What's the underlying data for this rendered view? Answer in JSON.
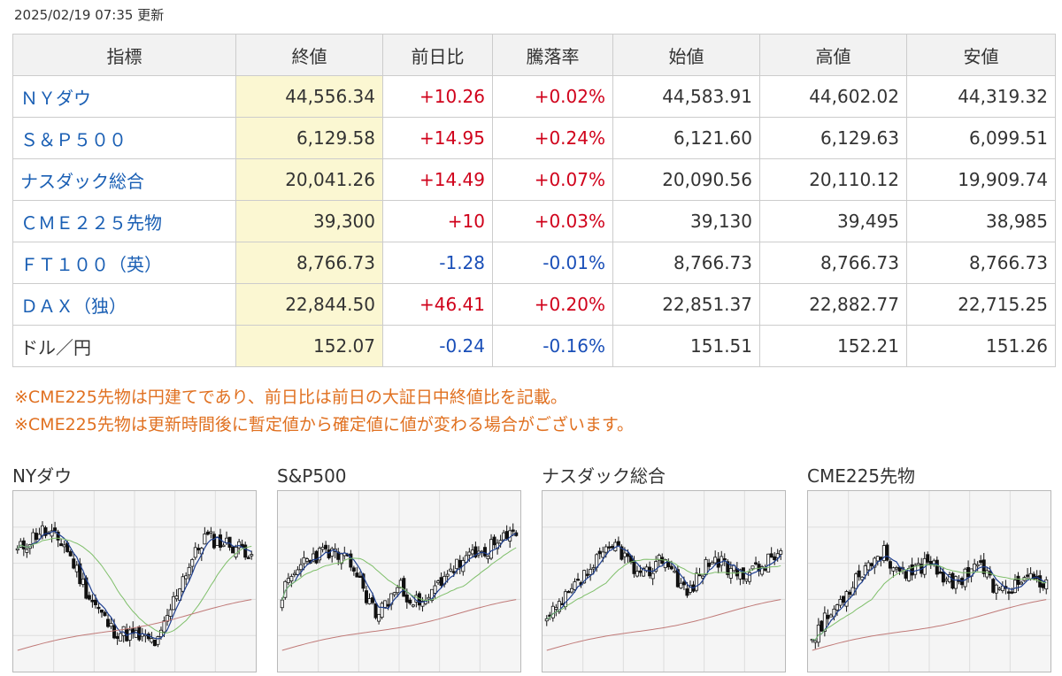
{
  "updated_text": "2025/02/19 07:35 更新",
  "table": {
    "headers": [
      "指標",
      "終値",
      "前日比",
      "騰落率",
      "始値",
      "高値",
      "安値"
    ],
    "rows": [
      {
        "name": "ＮＹダウ",
        "link": true,
        "close": "44,556.34",
        "change": "+10.26",
        "pct": "+0.02%",
        "dir": "up",
        "open": "44,583.91",
        "high": "44,602.02",
        "low": "44,319.32"
      },
      {
        "name": "Ｓ＆Ｐ５００",
        "link": true,
        "close": "6,129.58",
        "change": "+14.95",
        "pct": "+0.24%",
        "dir": "up",
        "open": "6,121.60",
        "high": "6,129.63",
        "low": "6,099.51"
      },
      {
        "name": "ナスダック総合",
        "link": true,
        "close": "20,041.26",
        "change": "+14.49",
        "pct": "+0.07%",
        "dir": "up",
        "open": "20,090.56",
        "high": "20,110.12",
        "low": "19,909.74"
      },
      {
        "name": "ＣＭＥ２２５先物",
        "link": true,
        "close": "39,300",
        "change": "+10",
        "pct": "+0.03%",
        "dir": "up",
        "open": "39,130",
        "high": "39,495",
        "low": "38,985"
      },
      {
        "name": "ＦＴ１００（英）",
        "link": true,
        "close": "8,766.73",
        "change": "-1.28",
        "pct": "-0.01%",
        "dir": "down",
        "open": "8,766.73",
        "high": "8,766.73",
        "low": "8,766.73"
      },
      {
        "name": "ＤＡＸ（独）",
        "link": true,
        "close": "22,844.50",
        "change": "+46.41",
        "pct": "+0.20%",
        "dir": "up",
        "open": "22,851.37",
        "high": "22,882.77",
        "low": "22,715.25"
      },
      {
        "name": "ドル／円",
        "link": false,
        "close": "152.07",
        "change": "-0.24",
        "pct": "-0.16%",
        "dir": "down",
        "open": "151.51",
        "high": "152.21",
        "low": "151.26"
      }
    ]
  },
  "notes": [
    "※CME225先物は円建てであり、前日比は前日の大証日中終値比を記載。",
    "※CME225先物は更新時間後に暫定値から確定値に値が変わる場合がございます。"
  ],
  "colors": {
    "up": "#d0021b",
    "down": "#1a4fb8",
    "link": "#1a5fb4",
    "note": "#e07020",
    "close_bg": "#fbf7d2",
    "ma_short": "#1f3f8f",
    "ma_mid": "#7fbf6a",
    "ma_long": "#c07a78"
  },
  "charts": [
    {
      "title": "NYダウ",
      "seed": 11,
      "shape": [
        0.75,
        0.9,
        0.8,
        0.45,
        0.2,
        0.15,
        0.1,
        0.55,
        0.85,
        0.8,
        0.75
      ]
    },
    {
      "title": "S&P500",
      "seed": 23,
      "shape": [
        0.45,
        0.7,
        0.75,
        0.65,
        0.3,
        0.5,
        0.35,
        0.6,
        0.7,
        0.78,
        0.88
      ]
    },
    {
      "title": "ナスダック総合",
      "seed": 37,
      "shape": [
        0.25,
        0.45,
        0.65,
        0.8,
        0.55,
        0.72,
        0.45,
        0.7,
        0.6,
        0.62,
        0.75
      ]
    },
    {
      "title": "CME225先物",
      "seed": 53,
      "shape": [
        0.15,
        0.35,
        0.6,
        0.75,
        0.55,
        0.7,
        0.5,
        0.68,
        0.45,
        0.55,
        0.5
      ]
    }
  ]
}
